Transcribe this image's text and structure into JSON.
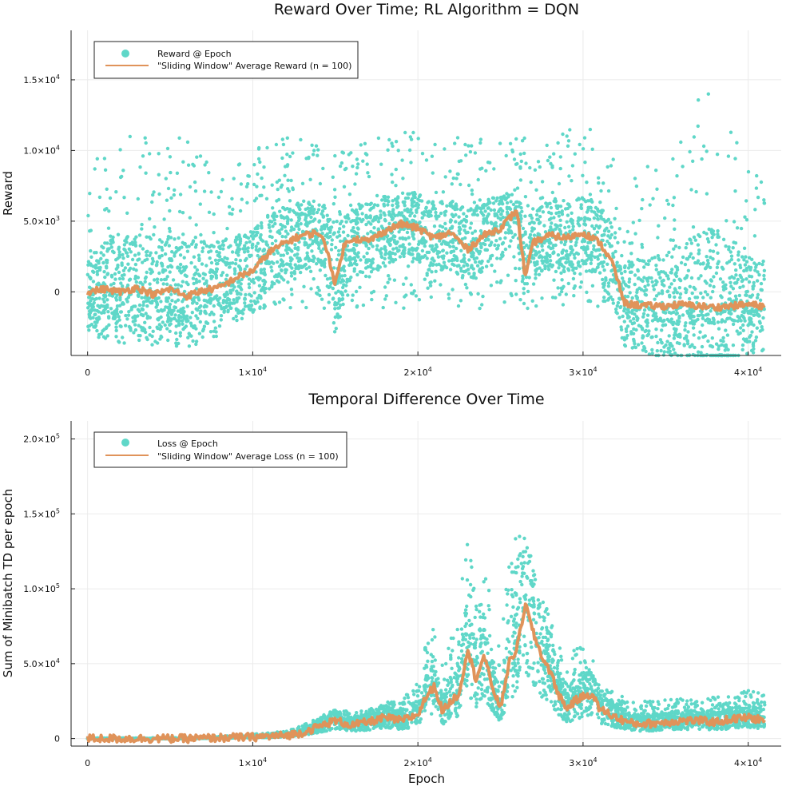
{
  "chart_data": [
    {
      "type": "scatter",
      "title": "Reward Over Time; RL Algorithm = DQN",
      "xlabel": "",
      "ylabel": "Reward",
      "xlim": [
        -1000,
        42000
      ],
      "ylim": [
        -4500,
        18500
      ],
      "xticks": [
        {
          "value": 0,
          "label": "0",
          "exp": ""
        },
        {
          "value": 10000,
          "label": "1×10",
          "exp": "4"
        },
        {
          "value": 20000,
          "label": "2×10",
          "exp": "4"
        },
        {
          "value": 30000,
          "label": "3×10",
          "exp": "4"
        },
        {
          "value": 40000,
          "label": "4×10",
          "exp": "4"
        }
      ],
      "yticks": [
        {
          "value": 0,
          "label": "0",
          "exp": ""
        },
        {
          "value": 5000,
          "label": "5.0×10",
          "exp": "3"
        },
        {
          "value": 10000,
          "label": "1.0×10",
          "exp": "4"
        },
        {
          "value": 15000,
          "label": "1.5×10",
          "exp": "4"
        }
      ],
      "grid": true,
      "legend_position": "top-left",
      "series": [
        {
          "name": "Reward @ Epoch",
          "kind": "scatter",
          "color": "#5fd7c8",
          "x": [
            0,
            1000,
            2000,
            3000,
            4000,
            5000,
            6000,
            7000,
            8000,
            9000,
            10000,
            11000,
            12000,
            13000,
            14000,
            14500,
            15000,
            16000,
            17000,
            18000,
            19000,
            20000,
            21000,
            22000,
            23000,
            24000,
            25000,
            26000,
            26500,
            27000,
            28000,
            29000,
            30000,
            31000,
            31800,
            32500,
            33000,
            34000,
            35000,
            36000,
            37000,
            38000,
            39000,
            40000,
            41000
          ],
          "y": [
            0,
            200,
            100,
            300,
            -100,
            200,
            -300,
            100,
            300,
            1000,
            1500,
            2800,
            3500,
            4000,
            4200,
            3000,
            500,
            3800,
            3600,
            4300,
            4800,
            4500,
            3800,
            4200,
            3000,
            4000,
            4500,
            5800,
            1000,
            3500,
            4000,
            3800,
            4200,
            3500,
            2000,
            -800,
            -900,
            -1000,
            -1000,
            -900,
            -1000,
            -1100,
            -1000,
            -900,
            -1000
          ],
          "spread_low": [
            -1500,
            -1800,
            -1800,
            -1800,
            -2000,
            -2000,
            -2200,
            -2000,
            -1600,
            -1400,
            -1300,
            -1200,
            -1200,
            -1200,
            -1200,
            -1200,
            -1200,
            -1200,
            -1200,
            -1200,
            -1200,
            -1200,
            -1200,
            -1200,
            -1200,
            -1200,
            -1200,
            -1200,
            -1200,
            -1200,
            -1200,
            -1200,
            -1200,
            -1200,
            -1500,
            -1800,
            -2000,
            -2000,
            -2200,
            -2200,
            -2200,
            -2200,
            -2200,
            -2200,
            -2200
          ],
          "spread_high": [
            8000,
            11000,
            11000,
            11000,
            11000,
            11000,
            11000,
            10000,
            10000,
            10000,
            10000,
            10500,
            11000,
            11000,
            11000,
            11000,
            11000,
            11000,
            11000,
            11500,
            11500,
            11500,
            11000,
            11000,
            11000,
            11000,
            11000,
            11000,
            11000,
            11000,
            11000,
            11500,
            11500,
            11500,
            10000,
            8000,
            8000,
            9000,
            10000,
            11000,
            14000,
            15000,
            12000,
            9000,
            8000
          ]
        },
        {
          "name": "\"Sliding Window\" Average Reward (n = 100)",
          "kind": "line",
          "color": "#e0935a",
          "x": [
            0,
            1000,
            2000,
            3000,
            4000,
            5000,
            6000,
            7000,
            8000,
            9000,
            10000,
            11000,
            12000,
            13000,
            14000,
            14500,
            15000,
            15500,
            16000,
            17000,
            18000,
            19000,
            20000,
            21000,
            22000,
            23000,
            24000,
            25000,
            26000,
            26500,
            27000,
            28000,
            29000,
            30000,
            31000,
            31800,
            32500,
            33000,
            34000,
            35000,
            36000,
            37000,
            38000,
            39000,
            40000,
            41000
          ],
          "y": [
            0,
            200,
            0,
            300,
            -200,
            200,
            -300,
            100,
            300,
            1000,
            1500,
            2800,
            3500,
            4000,
            4200,
            3000,
            500,
            3200,
            3800,
            3600,
            4300,
            4800,
            4500,
            3800,
            4200,
            3000,
            4000,
            4500,
            5800,
            1000,
            3500,
            4000,
            3800,
            4200,
            3500,
            2000,
            -800,
            -900,
            -1000,
            -1000,
            -900,
            -1000,
            -1100,
            -1000,
            -900,
            -1000
          ]
        }
      ]
    },
    {
      "type": "scatter",
      "title": "Temporal Difference Over Time",
      "xlabel": "Epoch",
      "ylabel": "Sum of Minibatch TD per epoch",
      "xlim": [
        -1000,
        42000
      ],
      "ylim": [
        -5000,
        212000
      ],
      "xticks": [
        {
          "value": 0,
          "label": "0",
          "exp": ""
        },
        {
          "value": 10000,
          "label": "1×10",
          "exp": "4"
        },
        {
          "value": 20000,
          "label": "2×10",
          "exp": "4"
        },
        {
          "value": 30000,
          "label": "3×10",
          "exp": "4"
        },
        {
          "value": 40000,
          "label": "4×10",
          "exp": "4"
        }
      ],
      "yticks": [
        {
          "value": 0,
          "label": "0",
          "exp": ""
        },
        {
          "value": 50000,
          "label": "5.0×10",
          "exp": "4"
        },
        {
          "value": 100000,
          "label": "1.0×10",
          "exp": "5"
        },
        {
          "value": 150000,
          "label": "1.5×10",
          "exp": "5"
        },
        {
          "value": 200000,
          "label": "2.0×10",
          "exp": "5"
        }
      ],
      "grid": true,
      "legend_position": "top-left",
      "series": [
        {
          "name": "Loss @ Epoch",
          "kind": "scatter",
          "color": "#5fd7c8",
          "x": [
            0,
            2000,
            4000,
            6000,
            8000,
            10000,
            12000,
            13000,
            14000,
            15000,
            16000,
            17000,
            18000,
            19000,
            20000,
            20500,
            21000,
            21500,
            22000,
            22500,
            23000,
            23500,
            24000,
            24500,
            25000,
            25500,
            26000,
            26500,
            27000,
            27500,
            28000,
            28500,
            29000,
            29500,
            30000,
            30500,
            31000,
            32000,
            33000,
            34000,
            35000,
            36000,
            37000,
            38000,
            39000,
            40000,
            41000
          ],
          "y": [
            0,
            0,
            0,
            0,
            500,
            1000,
            2000,
            4000,
            8000,
            12000,
            9000,
            11000,
            14000,
            12000,
            16000,
            28000,
            35000,
            18000,
            25000,
            30000,
            60000,
            40000,
            55000,
            35000,
            20000,
            50000,
            60000,
            90000,
            70000,
            55000,
            45000,
            30000,
            20000,
            25000,
            28000,
            30000,
            20000,
            14000,
            10000,
            10000,
            11000,
            12000,
            12000,
            11000,
            13000,
            14000,
            12000
          ],
          "spread_high": [
            300,
            400,
            500,
            600,
            1500,
            3000,
            5000,
            9000,
            14000,
            20000,
            18000,
            20000,
            24000,
            26000,
            40000,
            70000,
            80000,
            50000,
            70000,
            90000,
            140000,
            100000,
            130000,
            85000,
            60000,
            120000,
            140000,
            130000,
            120000,
            100000,
            80000,
            65000,
            55000,
            60000,
            62000,
            60000,
            40000,
            30000,
            25000,
            25000,
            26000,
            27000,
            28000,
            28000,
            30000,
            32000,
            30000
          ]
        },
        {
          "name": "\"Sliding Window\" Average Loss (n = 100)",
          "kind": "line",
          "color": "#e0935a",
          "x": [
            0,
            2000,
            4000,
            6000,
            8000,
            10000,
            12000,
            13000,
            14000,
            15000,
            16000,
            17000,
            18000,
            19000,
            20000,
            20500,
            21000,
            21500,
            22000,
            22500,
            23000,
            23500,
            24000,
            24500,
            25000,
            25500,
            26000,
            26500,
            27000,
            27500,
            28000,
            28500,
            29000,
            29500,
            30000,
            30500,
            31000,
            32000,
            33000,
            34000,
            35000,
            36000,
            37000,
            38000,
            39000,
            40000,
            41000
          ],
          "y": [
            0,
            0,
            0,
            0,
            500,
            1000,
            2000,
            4000,
            8000,
            12000,
            9000,
            11000,
            14000,
            12000,
            16000,
            28000,
            35000,
            18000,
            25000,
            30000,
            60000,
            40000,
            55000,
            35000,
            20000,
            50000,
            60000,
            90000,
            70000,
            55000,
            45000,
            30000,
            20000,
            25000,
            28000,
            30000,
            20000,
            14000,
            10000,
            10000,
            11000,
            12000,
            12000,
            11000,
            13000,
            14000,
            12000
          ]
        }
      ]
    }
  ]
}
